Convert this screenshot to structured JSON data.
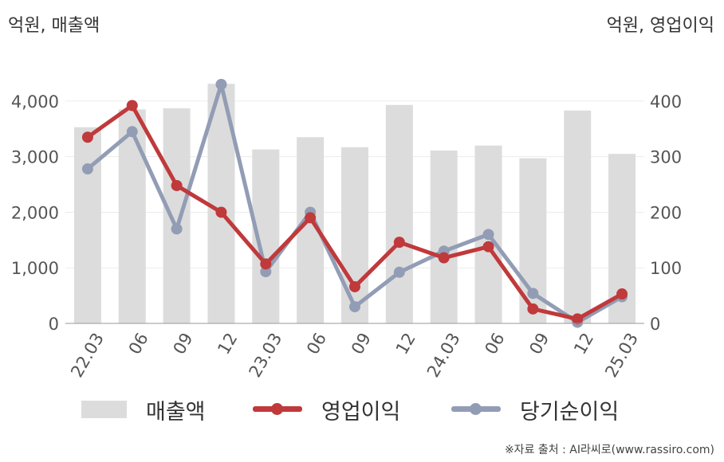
{
  "units": {
    "left": "억원, 매출액",
    "right": "억원, 영업이익"
  },
  "source": "※자료 출처 : AI라씨로(www.rassiro.com)",
  "colors": {
    "bar": "#dcdcdc",
    "operating": "#c0393b",
    "net": "#929db5"
  },
  "chart_data": {
    "type": "bar",
    "categories": [
      "22.03",
      "06",
      "09",
      "12",
      "23.03",
      "06",
      "09",
      "12",
      "24.03",
      "06",
      "09",
      "12",
      "25.03"
    ],
    "left_axis": {
      "ylim": [
        0,
        4500
      ],
      "ticks": [
        "0",
        "1,000",
        "2,000",
        "3,000",
        "4,000"
      ],
      "tick_values": [
        0,
        1000,
        2000,
        3000,
        4000
      ]
    },
    "right_axis": {
      "ylim": [
        0,
        450
      ],
      "ticks": [
        "0",
        "100",
        "200",
        "300",
        "400"
      ],
      "tick_values": [
        0,
        100,
        200,
        300,
        400
      ]
    },
    "series": [
      {
        "name": "매출액",
        "type": "bar",
        "axis": "left",
        "values": [
          3530,
          3850,
          3870,
          4310,
          3130,
          3350,
          3170,
          3930,
          3110,
          3200,
          2970,
          3830,
          3050
        ]
      },
      {
        "name": "영업이익",
        "type": "line",
        "axis": "right",
        "values": [
          335,
          392,
          248,
          200,
          107,
          190,
          66,
          146,
          118,
          138,
          26,
          8,
          53
        ]
      },
      {
        "name": "당기순이익",
        "type": "line",
        "axis": "right",
        "values": [
          278,
          345,
          170,
          430,
          93,
          200,
          30,
          92,
          130,
          160,
          54,
          2,
          48
        ]
      }
    ]
  }
}
